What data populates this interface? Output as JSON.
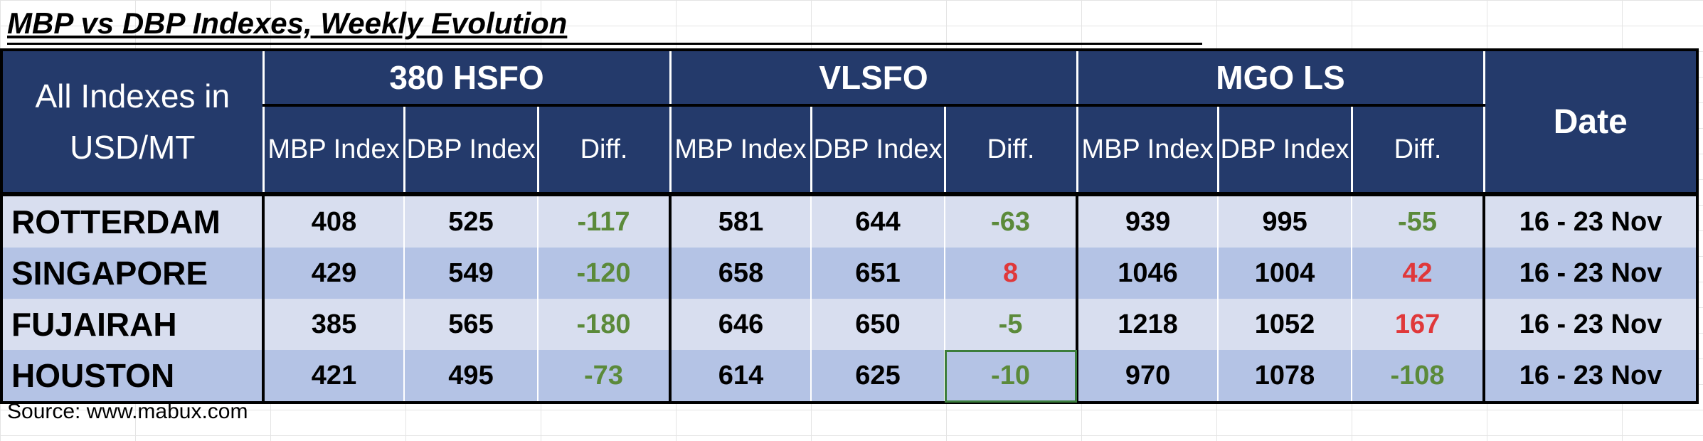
{
  "title": "MBP vs DBP Indexes, Weekly Evolution",
  "header": {
    "corner": "All Indexes in USD/MT",
    "groups": [
      "380 HSFO",
      "VLSFO",
      "MGO LS"
    ],
    "sub": [
      "MBP Index",
      "DBP Index",
      "Diff."
    ],
    "date": "Date"
  },
  "rows": [
    {
      "port": "ROTTERDAM",
      "hsfo": [
        "408",
        "525",
        "-117"
      ],
      "vlsfo": [
        "581",
        "644",
        "-63"
      ],
      "mgo": [
        "939",
        "995",
        "-55"
      ],
      "date": "16  - 23 Nov"
    },
    {
      "port": "SINGAPORE",
      "hsfo": [
        "429",
        "549",
        "-120"
      ],
      "vlsfo": [
        "658",
        "651",
        "8"
      ],
      "mgo": [
        "1046",
        "1004",
        "42"
      ],
      "date": "16  - 23 Nov"
    },
    {
      "port": "FUJAIRAH",
      "hsfo": [
        "385",
        "565",
        "-180"
      ],
      "vlsfo": [
        "646",
        "650",
        "-5"
      ],
      "mgo": [
        "1218",
        "1052",
        "167"
      ],
      "date": "16  - 23 Nov"
    },
    {
      "port": "HOUSTON",
      "hsfo": [
        "421",
        "495",
        "-73"
      ],
      "vlsfo": [
        "614",
        "625",
        "-10"
      ],
      "mgo": [
        "970",
        "1078",
        "-108"
      ],
      "date": "16  - 23 Nov"
    }
  ],
  "colors": {
    "header_bg": "#243a6b",
    "row_light": "#d8deef",
    "row_dark": "#b4c3e5",
    "negative": "#5b8a3a",
    "positive": "#e0383a"
  },
  "source": "Source: www.mabux.com"
}
